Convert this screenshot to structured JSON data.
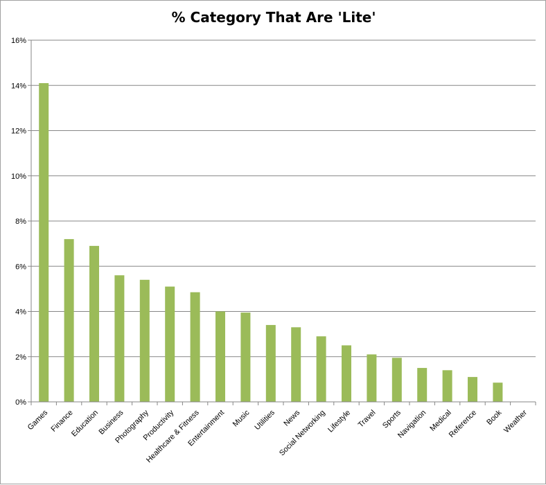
{
  "chart_data": {
    "type": "bar",
    "title": "% Category That Are 'Lite'",
    "xlabel": "",
    "ylabel": "",
    "ylim": [
      0,
      16
    ],
    "y_ticks": [
      "0%",
      "2%",
      "4%",
      "6%",
      "8%",
      "10%",
      "12%",
      "14%",
      "16%"
    ],
    "grid": true,
    "legend": "none",
    "bar_color": "#9bbb59",
    "categories": [
      "Games",
      "Finance",
      "Education",
      "Business",
      "Photography",
      "Productivity",
      "Healthcare & Fitness",
      "Entertainment",
      "Music",
      "Utilities",
      "News",
      "Social Networking",
      "Lifestyle",
      "Travel",
      "Sports",
      "Navigation",
      "Medical",
      "Reference",
      "Book",
      "Weather"
    ],
    "values": [
      14.1,
      7.2,
      6.9,
      5.6,
      5.4,
      5.1,
      4.85,
      4.0,
      3.95,
      3.4,
      3.3,
      2.9,
      2.5,
      2.1,
      1.95,
      1.5,
      1.4,
      1.1,
      0.85,
      0.0
    ]
  }
}
